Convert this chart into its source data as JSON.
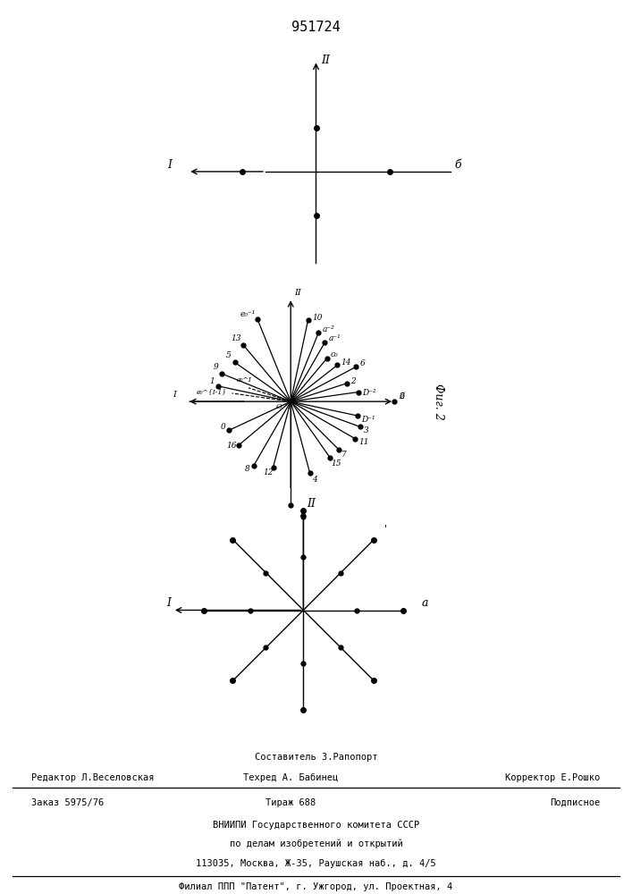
{
  "title": "951724",
  "background_color": "#ffffff",
  "fig1_label_II": "II",
  "fig1_label_I": "I",
  "fig1_label_b": "б",
  "fig3_label_II": "II",
  "fig3_label_I": "I",
  "fig3_label_a": "а",
  "fig2_label": "Фиг. 2",
  "footer_line1": "Составитель З.Рапопорт",
  "footer_line2_left": "Редактор Л.Веселовская",
  "footer_line2_mid": "Техред А. Бабинец",
  "footer_line2_right": "Корректор Е.Рошко",
  "footer_line3_left": "Заказ 5975/76",
  "footer_line3_mid": "Тираж 688",
  "footer_line3_right": "Подписное",
  "footer_line4": "ВНИИПИ Государственного комитета СССР",
  "footer_line5": "по делам изобретений и открытий",
  "footer_line6": "113035, Москва, Ж-35, Раушская наб., д. 4/5",
  "footer_line7": "Филиал ППП \"Патент\", г. Ужгород, ул. Проектная, 4"
}
